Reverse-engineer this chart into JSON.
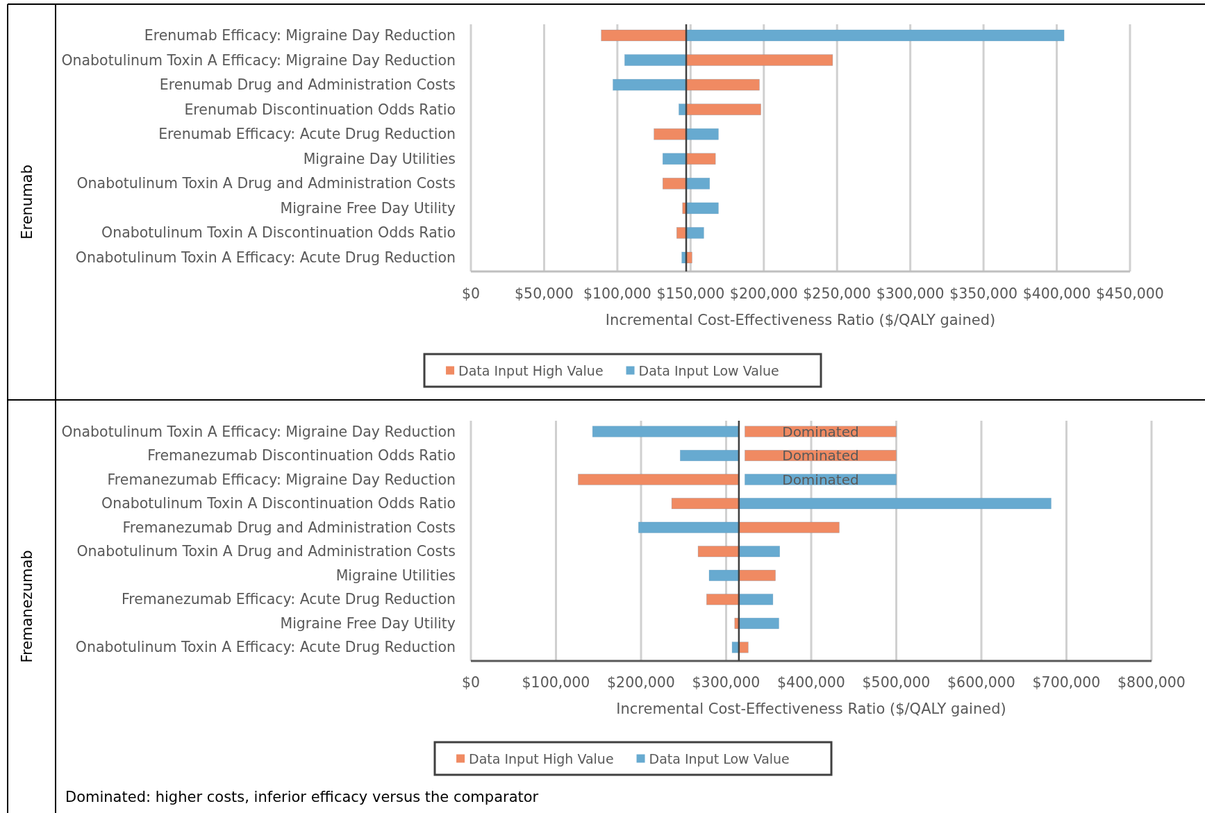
{
  "chart_data": [
    {
      "type": "bar",
      "orientation": "horizontal",
      "ylabel": "Erenumab",
      "xlabel": "Incremental Cost-Effectiveness  Ratio ($/QALY gained)",
      "categories": [
        "Erenumab Efficacy: Migraine Day Reduction",
        "Onabotulinum Toxin A Efficacy: Migraine Day Reduction",
        "Erenumab Drug and Administration Costs",
        "Erenumab Discontinuation Odds Ratio",
        "Erenumab Efficacy: Acute Drug Reduction",
        "Migraine Day Utilities",
        "Onabotulinum Toxin A  Drug and Administration Costs",
        "Migraine Free Day Utility",
        "Onabotulinum Toxin A Discontinuation Odds Ratio",
        "Onabotulinum Toxin A Efficacy: Acute Drug Reduction"
      ],
      "series": [
        {
          "name": "Data Input High Value",
          "color": "#f08a62",
          "base": [
            147000,
            147000,
            147000,
            147000,
            147000,
            147000,
            147000,
            147000,
            147000,
            147000
          ],
          "values": [
            -58000,
            100000,
            50000,
            51000,
            -22000,
            20000,
            -16000,
            -2500,
            -6500,
            4000
          ]
        },
        {
          "name": "Data Input Low Value",
          "color": "#67aad0",
          "base": [
            147000,
            147000,
            147000,
            147000,
            147000,
            147000,
            147000,
            147000,
            147000,
            147000
          ],
          "values": [
            258000,
            -42000,
            -50000,
            -5000,
            22000,
            -16000,
            16000,
            22000,
            12000,
            -3000
          ]
        }
      ],
      "xlim": [
        0,
        450000
      ],
      "xticks": [
        {
          "value": 0,
          "label": "$0"
        },
        {
          "value": 50000,
          "label": "$50,000"
        },
        {
          "value": 100000,
          "label": "$100,000"
        },
        {
          "value": 150000,
          "label": "$150,000"
        },
        {
          "value": 200000,
          "label": "$200,000"
        },
        {
          "value": 250000,
          "label": "$250,000"
        },
        {
          "value": 300000,
          "label": "$300,000"
        },
        {
          "value": 350000,
          "label": "$350,000"
        },
        {
          "value": 400000,
          "label": "$400,000"
        },
        {
          "value": 450000,
          "label": "$450,000"
        }
      ],
      "ref_lines": [
        {
          "axis": "x",
          "value": 147000,
          "color": "#404040"
        }
      ],
      "grid": "x",
      "legend": "bottom"
    },
    {
      "type": "bar",
      "orientation": "horizontal",
      "ylabel": "Fremanezumab",
      "xlabel": "Incremental Cost-Effectiveness  Ratio ($/QALY gained)",
      "categories": [
        "Onabotulinum Toxin A Efficacy: Migraine Day Reduction",
        "Fremanezumab Discontinuation Odds Ratio",
        "Fremanezumab Efficacy: Migraine Day Reduction",
        "Onabotulinum Toxin A Discontinuation Odds Ratio",
        "Fremanezumab Drug and Administration Costs",
        "Onabotulinum Toxin A  Drug and Administration Costs",
        "Migraine Utilities",
        "Fremanezumab Efficacy: Acute Drug Reduction",
        "Migraine Free Day Utility",
        "Onabotulinum Toxin A Efficacy: Acute Drug Reduction"
      ],
      "series": [
        {
          "name": "Data Input High Value",
          "color": "#f08a62",
          "base": [
            322000,
            322000,
            315000,
            315000,
            315000,
            315000,
            315000,
            315000,
            315000,
            315000
          ],
          "values": [
            178000,
            178000,
            -189000,
            -79000,
            118000,
            -48000,
            43000,
            -38000,
            -5000,
            11000
          ],
          "value_labels": [
            "Dominated",
            "Dominated",
            null,
            null,
            null,
            null,
            null,
            null,
            null,
            null
          ]
        },
        {
          "name": "Data Input Low Value",
          "color": "#67aad0",
          "base": [
            315000,
            315000,
            322000,
            315000,
            315000,
            315000,
            315000,
            315000,
            315000,
            315000
          ],
          "values": [
            -172000,
            -69000,
            178000,
            367000,
            -118000,
            48000,
            -35000,
            40000,
            47000,
            -8000
          ],
          "value_labels": [
            null,
            null,
            "Dominated",
            null,
            null,
            null,
            null,
            null,
            null,
            null
          ]
        }
      ],
      "xlim": [
        0,
        800000
      ],
      "xticks": [
        {
          "value": 0,
          "label": "$0"
        },
        {
          "value": 100000,
          "label": "$100,000"
        },
        {
          "value": 200000,
          "label": "$200,000"
        },
        {
          "value": 300000,
          "label": "$300,000"
        },
        {
          "value": 400000,
          "label": "$400,000"
        },
        {
          "value": 500000,
          "label": "$500,000"
        },
        {
          "value": 600000,
          "label": "$600,000"
        },
        {
          "value": 700000,
          "label": "$700,000"
        },
        {
          "value": 800000,
          "label": "$800,000"
        }
      ],
      "ref_lines": [
        {
          "axis": "x",
          "value": 315000,
          "color": "#404040"
        }
      ],
      "annotations": [
        "Dominated: higher costs, inferior efficacy versus the comparator"
      ],
      "grid": "x",
      "legend": "bottom"
    }
  ]
}
